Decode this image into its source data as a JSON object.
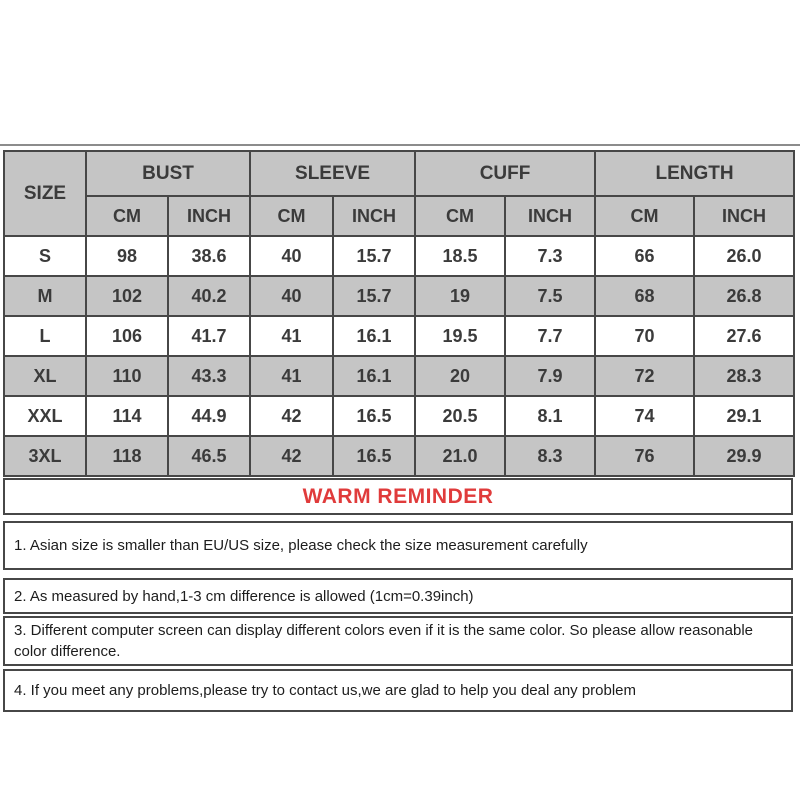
{
  "colors": {
    "header_gray": "#c5c5c5",
    "border": "#474747",
    "accent_red": "#e03b3b"
  },
  "table": {
    "size_header": "SIZE",
    "groups": [
      {
        "label": "BUST",
        "sub": [
          "CM",
          "INCH"
        ]
      },
      {
        "label": "SLEEVE",
        "sub": [
          "CM",
          "INCH"
        ]
      },
      {
        "label": "CUFF",
        "sub": [
          "CM",
          "INCH"
        ]
      },
      {
        "label": "LENGTH",
        "sub": [
          "CM",
          "INCH"
        ]
      }
    ],
    "rows": [
      {
        "size": "S",
        "shaded": false,
        "values": [
          "98",
          "38.6",
          "40",
          "15.7",
          "18.5",
          "7.3",
          "66",
          "26.0"
        ]
      },
      {
        "size": "M",
        "shaded": true,
        "values": [
          "102",
          "40.2",
          "40",
          "15.7",
          "19",
          "7.5",
          "68",
          "26.8"
        ]
      },
      {
        "size": "L",
        "shaded": false,
        "values": [
          "106",
          "41.7",
          "41",
          "16.1",
          "19.5",
          "7.7",
          "70",
          "27.6"
        ]
      },
      {
        "size": "XL",
        "shaded": true,
        "values": [
          "110",
          "43.3",
          "41",
          "16.1",
          "20",
          "7.9",
          "72",
          "28.3"
        ]
      },
      {
        "size": "XXL",
        "shaded": false,
        "values": [
          "114",
          "44.9",
          "42",
          "16.5",
          "20.5",
          "8.1",
          "74",
          "29.1"
        ]
      },
      {
        "size": "3XL",
        "shaded": true,
        "values": [
          "118",
          "46.5",
          "42",
          "16.5",
          "21.0",
          "8.3",
          "76",
          "29.9"
        ]
      }
    ]
  },
  "reminder": {
    "title": "WARM REMINDER"
  },
  "notes": [
    "1. Asian size is smaller than EU/US size, please check the size measurement carefully",
    "2. As measured by hand,1-3 cm difference is allowed (1cm=0.39inch)",
    "3. Different computer screen can display different colors even if it is the same color. So please allow reasonable color difference.",
    "4. If you meet any problems,please try to contact us,we are glad to help you deal any problem"
  ]
}
